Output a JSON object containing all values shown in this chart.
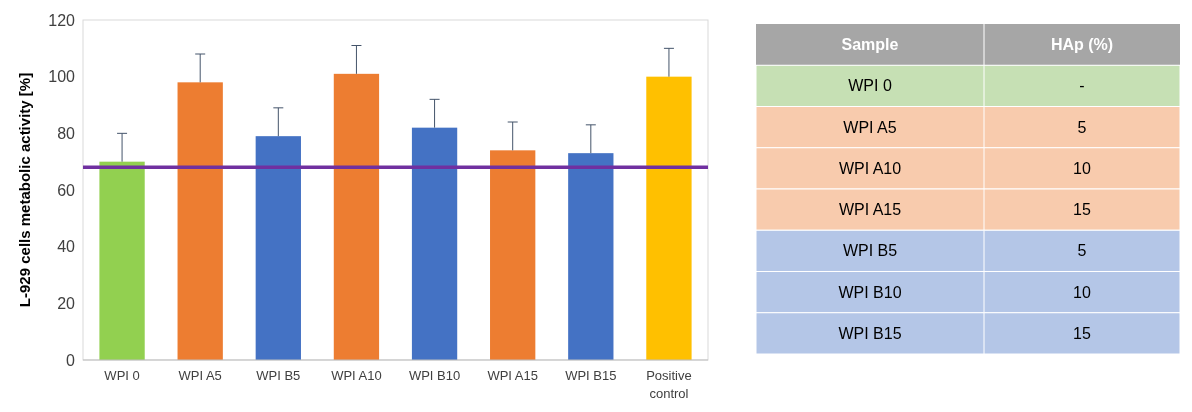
{
  "chart_data": [
    {
      "type": "bar",
      "ylabel": "L-929 cells metabolic activity [%]",
      "categories": [
        "WPI 0",
        "WPI A5",
        "WPI B5",
        "WPI A10",
        "WPI B10",
        "WPI A15",
        "WPI B15",
        "Positive control"
      ],
      "values": [
        70,
        98,
        79,
        101,
        82,
        74,
        73,
        100
      ],
      "colors": [
        "#92d050",
        "#ed7d31",
        "#4472c4",
        "#ed7d31",
        "#4472c4",
        "#ed7d31",
        "#4472c4",
        "#ffc000"
      ],
      "errors": [
        [
          70,
          80
        ],
        [
          98,
          108
        ],
        [
          79,
          89
        ],
        [
          101,
          111
        ],
        [
          82,
          92
        ],
        [
          74,
          84
        ],
        [
          73,
          83
        ],
        [
          100,
          110
        ]
      ],
      "ylim": [
        0,
        120
      ],
      "yticks": [
        0,
        20,
        40,
        60,
        80,
        100,
        120
      ],
      "ref_lines": [
        {
          "axis": "y",
          "value": 68,
          "color": "#7030a0"
        }
      ],
      "grid": false
    },
    {
      "type": "other",
      "categories": [
        "Sample",
        "HAp (%)"
      ],
      "y_categories": [
        "WPI 0",
        "WPI A5",
        "WPI A10",
        "WPI A15",
        "WPI B5",
        "WPI B10",
        "WPI B15"
      ],
      "cell_labels": [
        [
          "-"
        ],
        [
          "5"
        ],
        [
          "10"
        ],
        [
          "15"
        ],
        [
          "5"
        ],
        [
          "10"
        ],
        [
          "15"
        ]
      ],
      "colors": [
        "#a6a6a6",
        "#c6e0b4",
        "#f8cbad",
        "#f8cbad",
        "#f8cbad",
        "#b4c6e7",
        "#b4c6e7",
        "#b4c6e7"
      ]
    }
  ]
}
